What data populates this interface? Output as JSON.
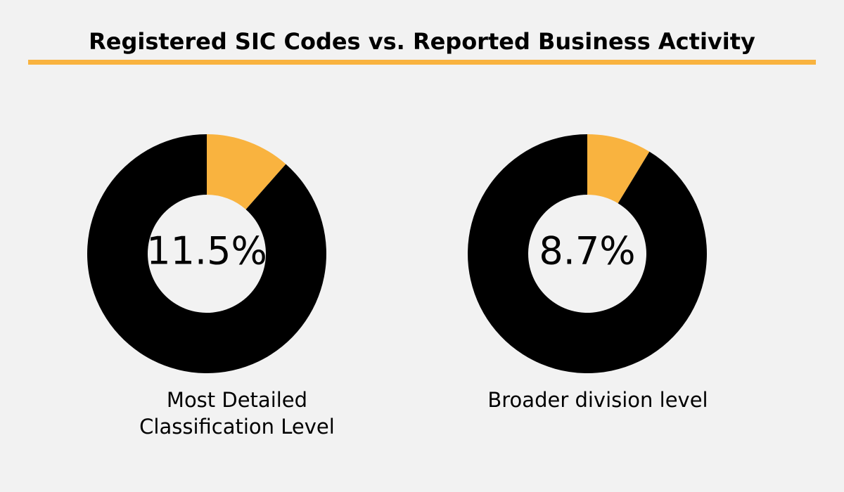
{
  "title": "Registered SIC Codes vs. Reported Business Activity",
  "chart_data": [
    {
      "type": "donut",
      "label": "Most Detailed Classification Level",
      "values": [
        11.5,
        88.5
      ],
      "value_labels": [
        "11.5%",
        null
      ],
      "colors": [
        "#f9b33f",
        "#000000"
      ]
    },
    {
      "type": "donut",
      "label": "Broader division level",
      "values": [
        8.7,
        91.3
      ],
      "value_labels": [
        "8.7%",
        null
      ],
      "colors": [
        "#f9b33f",
        "#000000"
      ]
    }
  ]
}
